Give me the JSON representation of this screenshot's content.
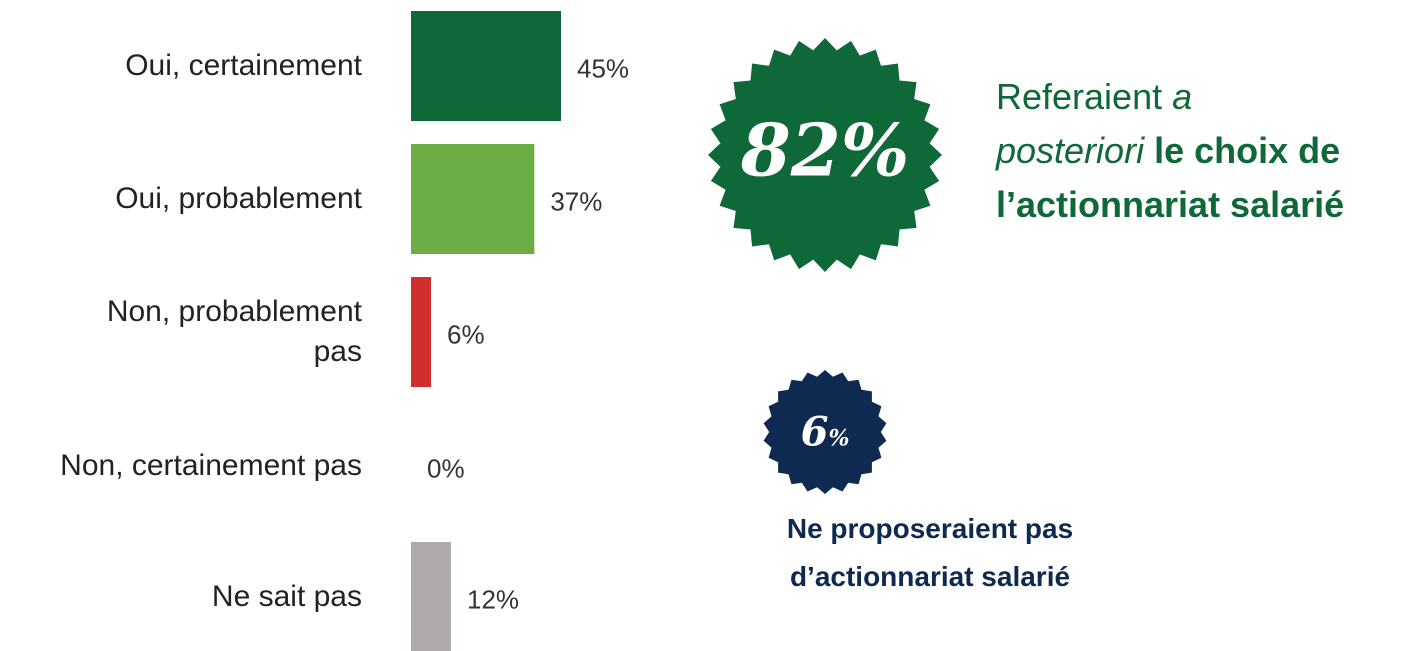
{
  "chart_data": {
    "type": "hbar",
    "categories": [
      "Oui, certainement",
      "Oui, probablement",
      "Non, probablement pas",
      "Non, certainement pas",
      "Ne sait pas"
    ],
    "values": [
      45,
      37,
      6,
      0,
      12
    ],
    "value_labels": [
      "45%",
      "37%",
      "6%",
      "0%",
      "12%"
    ],
    "colors": [
      "#0f6837",
      "#6aad45",
      "#d12e2e",
      "#0f6837",
      "#aeaaaa"
    ]
  },
  "callouts": [
    {
      "badge": {
        "number": "82%"
      },
      "color": "#0f6837",
      "lines": [
        [
          {
            "text": "Referaient ",
            "style": "normal"
          },
          {
            "text": "a",
            "style": "italic"
          }
        ],
        [
          {
            "text": "posteriori",
            "style": "italic"
          },
          {
            "text": " le choix de",
            "style": "bold"
          }
        ],
        [
          {
            "text": "l’actionnariat salarié",
            "style": "bold"
          }
        ]
      ]
    },
    {
      "badge": {
        "number": "6",
        "unit": "%"
      },
      "color": "#0e2a50",
      "lines": [
        [
          {
            "text": "Ne proposeraient pas",
            "style": "bold"
          }
        ],
        [
          {
            "text": "d’actionnariat salarié",
            "style": "bold"
          }
        ]
      ]
    }
  ]
}
